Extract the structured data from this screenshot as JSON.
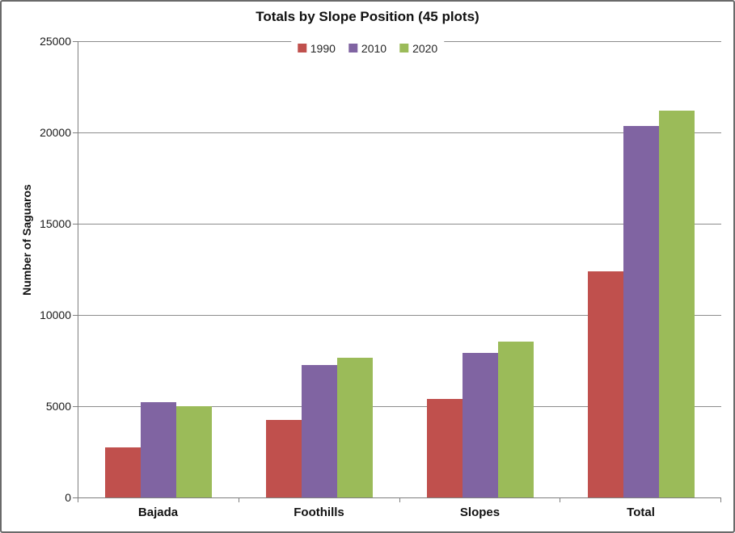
{
  "window": {
    "background": "#FFFFFF",
    "border_color": "#6A6A6A"
  },
  "colors": {
    "gridline": "#8C8C8C",
    "axis_line": "#7F7F7F",
    "text": "#1A1A1A"
  },
  "chart_data": {
    "type": "bar",
    "title": "Totals by Slope Position (45 plots)",
    "ylabel": "Number of Saguaros",
    "xlabel": "",
    "categories": [
      "Bajada",
      "Foothills",
      "Slopes",
      "Total"
    ],
    "series": [
      {
        "name": "1990",
        "color": "#C0504D",
        "values": [
          2750,
          4250,
          5400,
          12400
        ]
      },
      {
        "name": "2010",
        "color": "#8064A2",
        "values": [
          5200,
          7250,
          7900,
          20350
        ]
      },
      {
        "name": "2020",
        "color": "#9BBB59",
        "values": [
          5000,
          7650,
          8550,
          21200
        ]
      }
    ],
    "ylim": [
      0,
      25000
    ],
    "yticks": [
      0,
      5000,
      10000,
      15000,
      20000,
      25000
    ],
    "grid": true,
    "legend_position": "top-center",
    "bar_gap_within_group": 0
  }
}
